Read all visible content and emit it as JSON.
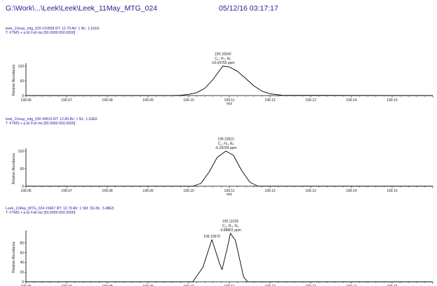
{
  "header": {
    "path": "G:\\Work\\...\\Leek\\Leek\\Leek_11May_MTG_024",
    "datetime": "05/12/16 03:17:17"
  },
  "chart_data": [
    {
      "type": "line",
      "scan_line": "leek_11may_mtg_029 #10558   RT: 12.79   AV: 1   NL: 1.51E6",
      "filter_line": "T: FTMS + p EI Full ms [50.0000-550.0000]",
      "xlabel": "m/z",
      "ylabel": "Relative Abundance",
      "xlim": [
        199.06,
        199.16
      ],
      "ylim": [
        0,
        100
      ],
      "xticks": [
        "199.06",
        "199.07",
        "199.08",
        "199.09",
        "199.10",
        "199.11",
        "199.12",
        "199.13",
        "199.14",
        "199.15"
      ],
      "yticks": [
        "0",
        "50",
        "100"
      ],
      "peak_annotations": [
        {
          "x": 199.1084,
          "y": 100,
          "lines": [
            "199.10840",
            "C₁₂ H₁₃ N₃",
            "-10.04755 ppm"
          ]
        }
      ],
      "x": [
        199.06,
        199.096,
        199.098,
        199.1,
        199.102,
        199.104,
        199.106,
        199.1084,
        199.11,
        199.112,
        199.114,
        199.116,
        199.118,
        199.12,
        199.123,
        199.16
      ],
      "y": [
        0,
        0,
        1,
        4,
        10,
        25,
        55,
        100,
        97,
        82,
        58,
        33,
        15,
        6,
        1,
        0
      ]
    },
    {
      "type": "line",
      "scan_line": "leek_11may_mtg_030 #8615   RT: 12.80   AV: 1   NL: 1.63E6",
      "filter_line": "T: FTMS + p EI Full ms [50.0000-550.0000]",
      "xlabel": "m/z",
      "ylabel": "Relative Abundance",
      "xlim": [
        199.06,
        199.16
      ],
      "ylim": [
        0,
        100
      ],
      "xticks": [
        "199.06",
        "199.07",
        "199.08",
        "199.09",
        "199.10",
        "199.11",
        "199.12",
        "199.13",
        "199.14",
        "199.15"
      ],
      "yticks": [
        "0",
        "50",
        "100"
      ],
      "peak_annotations": [
        {
          "x": 199.10915,
          "y": 100,
          "lines": [
            "199.10915",
            "C₁₂ H₁₃ N₃",
            "-6.29239 ppm"
          ]
        }
      ],
      "x": [
        199.06,
        199.101,
        199.103,
        199.105,
        199.107,
        199.10915,
        199.111,
        199.113,
        199.115,
        199.117,
        199.16
      ],
      "y": [
        0,
        0,
        8,
        40,
        82,
        100,
        88,
        45,
        12,
        0,
        0
      ]
    },
    {
      "type": "line",
      "scan_line": "Leek_11May_MTG_024 #3467   RT: 12.79   AV: 1   SM: 3G   NL: 3.48E5",
      "filter_line": "T: FTMS + p EI Full ms [50.0000-550.0000]",
      "xlabel": "",
      "ylabel": "Relative Abundance",
      "xlim": [
        199.06,
        199.16
      ],
      "ylim": [
        0,
        100
      ],
      "xticks": [
        "199.06",
        "199.07",
        "199.08",
        "199.09",
        "199.10",
        "199.11",
        "199.12",
        "199.13",
        "199.14",
        "199.15"
      ],
      "yticks": [
        "0",
        "20",
        "40",
        "60",
        "80"
      ],
      "peak_annotations": [
        {
          "x": 199.1057,
          "y": 87,
          "lines": [
            "199.10570"
          ]
        },
        {
          "x": 199.11026,
          "y": 100,
          "lines": [
            "199.11026",
            "C₁₂ H₁₃ N₃",
            "-0.88801 ppm"
          ]
        }
      ],
      "x": [
        199.06,
        199.101,
        199.1035,
        199.1057,
        199.1075,
        199.1082,
        199.1095,
        199.11026,
        199.1115,
        199.1135,
        199.1145,
        199.16
      ],
      "y": [
        0,
        0,
        30,
        87,
        40,
        25,
        70,
        100,
        85,
        10,
        0,
        0
      ]
    }
  ]
}
